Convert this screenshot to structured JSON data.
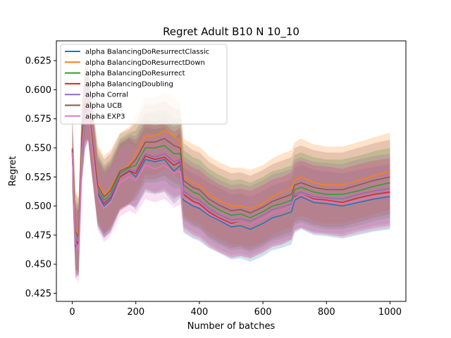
{
  "chart_data": {
    "type": "line",
    "title": "Regret Adult B10 N 10_10",
    "xlabel": "Number of batches",
    "ylabel": "Regret",
    "xlim": [
      -50,
      1050
    ],
    "ylim": [
      0.418,
      0.642
    ],
    "xticks": [
      0,
      200,
      400,
      600,
      800,
      1000
    ],
    "yticks": [
      0.425,
      0.45,
      0.475,
      0.5,
      0.525,
      0.55,
      0.575,
      0.6,
      0.625
    ],
    "xtick_labels": [
      "0",
      "200",
      "400",
      "600",
      "800",
      "1000"
    ],
    "ytick_labels": [
      "0.425",
      "0.450",
      "0.475",
      "0.500",
      "0.525",
      "0.550",
      "0.575",
      "0.600",
      "0.625"
    ],
    "grid": false,
    "legend_position": "top-left",
    "x": [
      0,
      10,
      20,
      30,
      40,
      50,
      60,
      80,
      100,
      120,
      150,
      180,
      200,
      230,
      260,
      290,
      320,
      340,
      350,
      380,
      400,
      430,
      460,
      500,
      530,
      560,
      600,
      630,
      660,
      690,
      700,
      720,
      760,
      800,
      850,
      900,
      950,
      1000
    ],
    "series": [
      {
        "name": "alpha BalancingDoResurrectClassic",
        "color": "#1f77b4",
        "values": [
          0.545,
          0.465,
          0.47,
          0.545,
          0.575,
          0.585,
          0.56,
          0.51,
          0.5,
          0.505,
          0.525,
          0.53,
          0.525,
          0.54,
          0.538,
          0.54,
          0.53,
          0.535,
          0.505,
          0.5,
          0.498,
          0.492,
          0.488,
          0.482,
          0.483,
          0.48,
          0.485,
          0.49,
          0.492,
          0.495,
          0.505,
          0.508,
          0.503,
          0.502,
          0.5,
          0.503,
          0.506,
          0.508
        ],
        "band": 0.028
      },
      {
        "name": "alpha BalancingDoResurrectDown",
        "color": "#ff7f0e",
        "values": [
          0.55,
          0.48,
          0.475,
          0.56,
          0.59,
          0.59,
          0.565,
          0.52,
          0.51,
          0.515,
          0.53,
          0.535,
          0.545,
          0.56,
          0.56,
          0.565,
          0.56,
          0.555,
          0.525,
          0.52,
          0.518,
          0.51,
          0.505,
          0.5,
          0.5,
          0.498,
          0.502,
          0.508,
          0.512,
          0.515,
          0.522,
          0.525,
          0.52,
          0.518,
          0.518,
          0.522,
          0.526,
          0.53
        ],
        "band": 0.033
      },
      {
        "name": "alpha BalancingDoResurrect",
        "color": "#2ca02c",
        "values": [
          0.548,
          0.475,
          0.472,
          0.555,
          0.585,
          0.588,
          0.562,
          0.515,
          0.505,
          0.51,
          0.528,
          0.533,
          0.535,
          0.55,
          0.55,
          0.552,
          0.545,
          0.545,
          0.518,
          0.512,
          0.51,
          0.502,
          0.497,
          0.492,
          0.493,
          0.49,
          0.495,
          0.5,
          0.502,
          0.505,
          0.514,
          0.516,
          0.512,
          0.51,
          0.51,
          0.513,
          0.517,
          0.52
        ],
        "band": 0.03
      },
      {
        "name": "alpha BalancingDoubling",
        "color": "#d62728",
        "values": [
          0.545,
          0.47,
          0.468,
          0.55,
          0.58,
          0.586,
          0.56,
          0.512,
          0.502,
          0.507,
          0.525,
          0.53,
          0.528,
          0.543,
          0.54,
          0.542,
          0.535,
          0.538,
          0.51,
          0.504,
          0.502,
          0.495,
          0.49,
          0.485,
          0.486,
          0.484,
          0.489,
          0.494,
          0.496,
          0.5,
          0.508,
          0.51,
          0.506,
          0.505,
          0.503,
          0.507,
          0.51,
          0.512
        ],
        "band": 0.029
      },
      {
        "name": "alpha Corral",
        "color": "#9467bd",
        "values": [
          0.547,
          0.472,
          0.47,
          0.552,
          0.582,
          0.587,
          0.561,
          0.513,
          0.503,
          0.508,
          0.526,
          0.531,
          0.53,
          0.545,
          0.542,
          0.545,
          0.538,
          0.54,
          0.513,
          0.507,
          0.505,
          0.498,
          0.493,
          0.488,
          0.489,
          0.487,
          0.492,
          0.497,
          0.499,
          0.502,
          0.51,
          0.512,
          0.508,
          0.507,
          0.506,
          0.51,
          0.513,
          0.515
        ],
        "band": 0.03
      },
      {
        "name": "alpha UCB",
        "color": "#8c564b",
        "values": [
          0.549,
          0.478,
          0.474,
          0.558,
          0.588,
          0.589,
          0.564,
          0.518,
          0.508,
          0.513,
          0.53,
          0.534,
          0.54,
          0.555,
          0.555,
          0.558,
          0.552,
          0.55,
          0.522,
          0.516,
          0.514,
          0.506,
          0.501,
          0.496,
          0.497,
          0.494,
          0.499,
          0.504,
          0.507,
          0.51,
          0.518,
          0.52,
          0.516,
          0.514,
          0.514,
          0.518,
          0.522,
          0.525
        ],
        "band": 0.032
      },
      {
        "name": "alpha EXP3",
        "color": "#e377c2",
        "values": [
          0.546,
          0.468,
          0.462,
          0.548,
          0.578,
          0.584,
          0.558,
          0.508,
          0.498,
          0.503,
          0.52,
          0.525,
          0.522,
          0.535,
          0.532,
          0.535,
          0.528,
          0.53,
          0.507,
          0.502,
          0.5,
          0.493,
          0.489,
          0.484,
          0.486,
          0.484,
          0.489,
          0.494,
          0.496,
          0.5,
          0.507,
          0.51,
          0.505,
          0.504,
          0.502,
          0.505,
          0.508,
          0.51
        ],
        "band": 0.029
      }
    ]
  }
}
